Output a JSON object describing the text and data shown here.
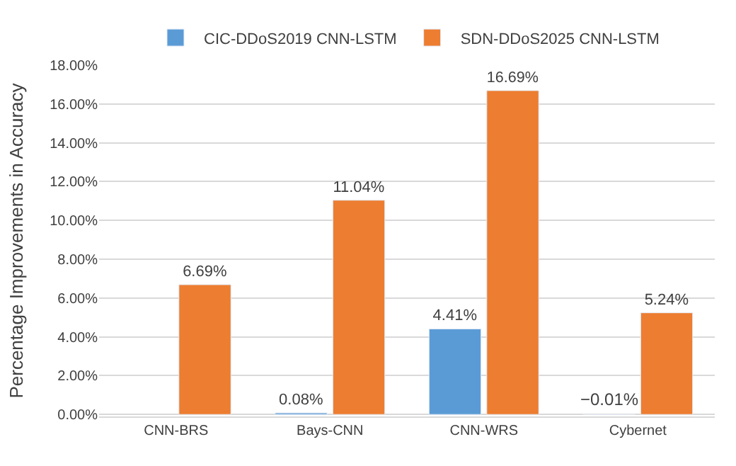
{
  "chart_data": {
    "type": "bar",
    "ylabel": "Percentage Improvements in Accuracy",
    "categories": [
      "CNN-BRS",
      "Bays-CNN",
      "CNN-WRS",
      "Cybernet"
    ],
    "series": [
      {
        "name": "CIC-DDoS2019 CNN-LSTM",
        "color": "#5b9bd5",
        "values": [
          null,
          0.08,
          4.41,
          -0.01
        ],
        "value_labels": [
          null,
          "0.08%",
          "4.41%",
          "−0.01%"
        ]
      },
      {
        "name": "SDN-DDoS2025 CNN-LSTM",
        "color": "#ed7d31",
        "values": [
          6.69,
          11.04,
          16.69,
          5.24
        ],
        "value_labels": [
          "6.69%",
          "11.04%",
          "16.69%",
          "5.24%"
        ]
      }
    ],
    "ylim": [
      -0.1,
      18
    ],
    "yticks": [
      {
        "value": 0,
        "label": "0.00%"
      },
      {
        "value": 2,
        "label": "2.00%"
      },
      {
        "value": 4,
        "label": "4.00%"
      },
      {
        "value": 6,
        "label": "6.00%"
      },
      {
        "value": 8,
        "label": "8.00%"
      },
      {
        "value": 10,
        "label": "10.00%"
      },
      {
        "value": 12,
        "label": "12.00%"
      },
      {
        "value": 14,
        "label": "14.00%"
      },
      {
        "value": 16,
        "label": "16.00%"
      },
      {
        "value": 18,
        "label": "18.00%"
      }
    ],
    "grid": "y",
    "legend": "top"
  }
}
